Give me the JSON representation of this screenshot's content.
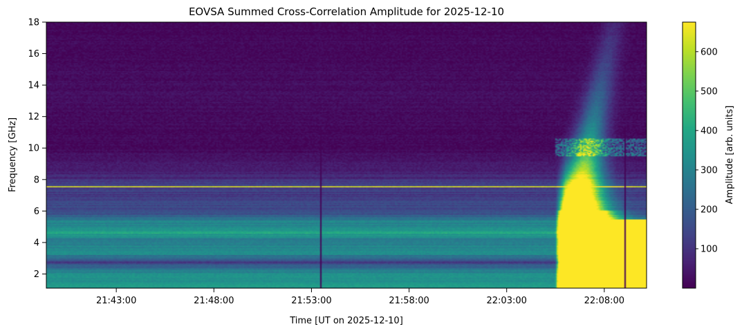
{
  "chart_data": {
    "type": "heatmap",
    "title": "EOVSA Summed Cross-Correlation Amplitude for 2025-12-10",
    "xlabel": "Time [UT on 2025-12-10]",
    "ylabel": "Frequency [GHz]",
    "x_ticks": [
      "21:43:00",
      "21:48:00",
      "21:53:00",
      "21:58:00",
      "22:03:00",
      "22:08:00"
    ],
    "x_range": [
      "21:39:25",
      "22:10:10"
    ],
    "y_ticks": [
      2,
      4,
      6,
      8,
      10,
      12,
      14,
      16,
      18
    ],
    "ylim": [
      1.1,
      18
    ],
    "colorbar": {
      "label": "Amplitude [arb. units]",
      "ticks": [
        100,
        200,
        300,
        400,
        500,
        600
      ],
      "range": [
        0,
        675
      ],
      "colormap": "viridis"
    },
    "features": {
      "flare_start": "22:05:30",
      "flare_peak": "22:06:50",
      "flare_peak_max_frequency_ghz": 18,
      "saturated_below_ghz": 5.5,
      "vertical_gaps": [
        "21:53:30",
        "22:09:05"
      ],
      "strong_band_ghz": 7.55,
      "background_levels": [
        {
          "f": 1.5,
          "v": 360
        },
        {
          "f": 2.0,
          "v": 340
        },
        {
          "f": 2.8,
          "v": 120
        },
        {
          "f": 3.3,
          "v": 330
        },
        {
          "f": 3.7,
          "v": 300
        },
        {
          "f": 4.2,
          "v": 280
        },
        {
          "f": 4.6,
          "v": 380
        },
        {
          "f": 5.0,
          "v": 330
        },
        {
          "f": 5.4,
          "v": 300
        },
        {
          "f": 5.8,
          "v": 170
        },
        {
          "f": 6.5,
          "v": 140
        },
        {
          "f": 7.5,
          "v": 120
        },
        {
          "f": 8.5,
          "v": 60
        },
        {
          "f": 10.0,
          "v": 15
        },
        {
          "f": 13.0,
          "v": 25
        },
        {
          "f": 18.0,
          "v": 10
        }
      ]
    }
  }
}
